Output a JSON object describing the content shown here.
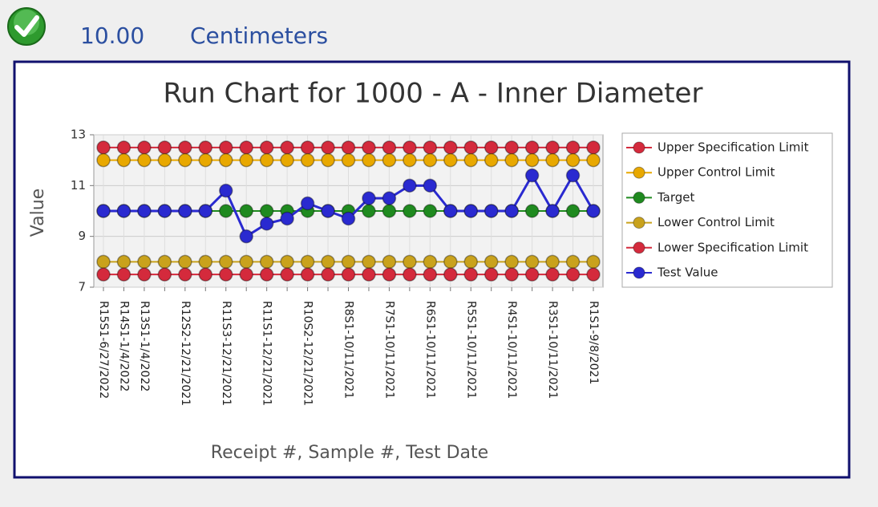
{
  "header": {
    "value": "10.00",
    "unit": "Centimeters"
  },
  "chart_data": {
    "type": "line",
    "title": "Run Chart for 1000 - A - Inner Diameter",
    "y_label": "Value",
    "x_label": "Receipt #, Sample #, Test Date",
    "categories": [
      "R15S1-6/27/2022",
      "R14S1-1/4/2022",
      "R13S1-1/4/2022",
      null,
      "R12S2-12/21/2021",
      null,
      "R11S3-12/21/2021",
      null,
      "R11S1-12/21/2021",
      null,
      "R10S2-12/21/2021",
      null,
      "R8S1-10/11/2021",
      null,
      "R7S1-10/11/2021",
      null,
      "R6S1-10/11/2021",
      null,
      "R5S1-10/11/2021",
      null,
      "R4S1-10/11/2021",
      null,
      "R3S1-10/11/2021",
      null,
      "R1S1-9/8/2021"
    ],
    "ylim": [
      7,
      13
    ],
    "yticks": [
      7,
      9,
      11,
      13
    ],
    "grid": true,
    "series": [
      {
        "name": "Upper Specification Limit",
        "color": "#d42a3c",
        "values": [
          12.5,
          12.5,
          12.5,
          12.5,
          12.5,
          12.5,
          12.5,
          12.5,
          12.5,
          12.5,
          12.5,
          12.5,
          12.5,
          12.5,
          12.5,
          12.5,
          12.5,
          12.5,
          12.5,
          12.5,
          12.5,
          12.5,
          12.5,
          12.5,
          12.5
        ]
      },
      {
        "name": "Upper Control Limit",
        "color": "#e8a800",
        "values": [
          12,
          12,
          12,
          12,
          12,
          12,
          12,
          12,
          12,
          12,
          12,
          12,
          12,
          12,
          12,
          12,
          12,
          12,
          12,
          12,
          12,
          12,
          12,
          12,
          12
        ]
      },
      {
        "name": "Target",
        "color": "#1f8a1f",
        "values": [
          10,
          10,
          10,
          10,
          10,
          10,
          10,
          10,
          10,
          10,
          10,
          10,
          10,
          10,
          10,
          10,
          10,
          10,
          10,
          10,
          10,
          10,
          10,
          10,
          10
        ]
      },
      {
        "name": "Lower Control Limit",
        "color": "#c9a21c",
        "values": [
          8,
          8,
          8,
          8,
          8,
          8,
          8,
          8,
          8,
          8,
          8,
          8,
          8,
          8,
          8,
          8,
          8,
          8,
          8,
          8,
          8,
          8,
          8,
          8,
          8
        ]
      },
      {
        "name": "Lower Specification Limit",
        "color": "#d42a3c",
        "values": [
          7.5,
          7.5,
          7.5,
          7.5,
          7.5,
          7.5,
          7.5,
          7.5,
          7.5,
          7.5,
          7.5,
          7.5,
          7.5,
          7.5,
          7.5,
          7.5,
          7.5,
          7.5,
          7.5,
          7.5,
          7.5,
          7.5,
          7.5,
          7.5,
          7.5
        ]
      },
      {
        "name": "Test Value",
        "color": "#2a2ad0",
        "values": [
          10,
          10,
          10,
          10,
          10,
          10,
          10.8,
          9,
          9.5,
          9.7,
          10.3,
          10,
          9.7,
          10.5,
          10.5,
          11,
          11,
          10,
          10,
          10,
          10,
          11.4,
          10,
          11.4,
          10
        ]
      }
    ]
  }
}
